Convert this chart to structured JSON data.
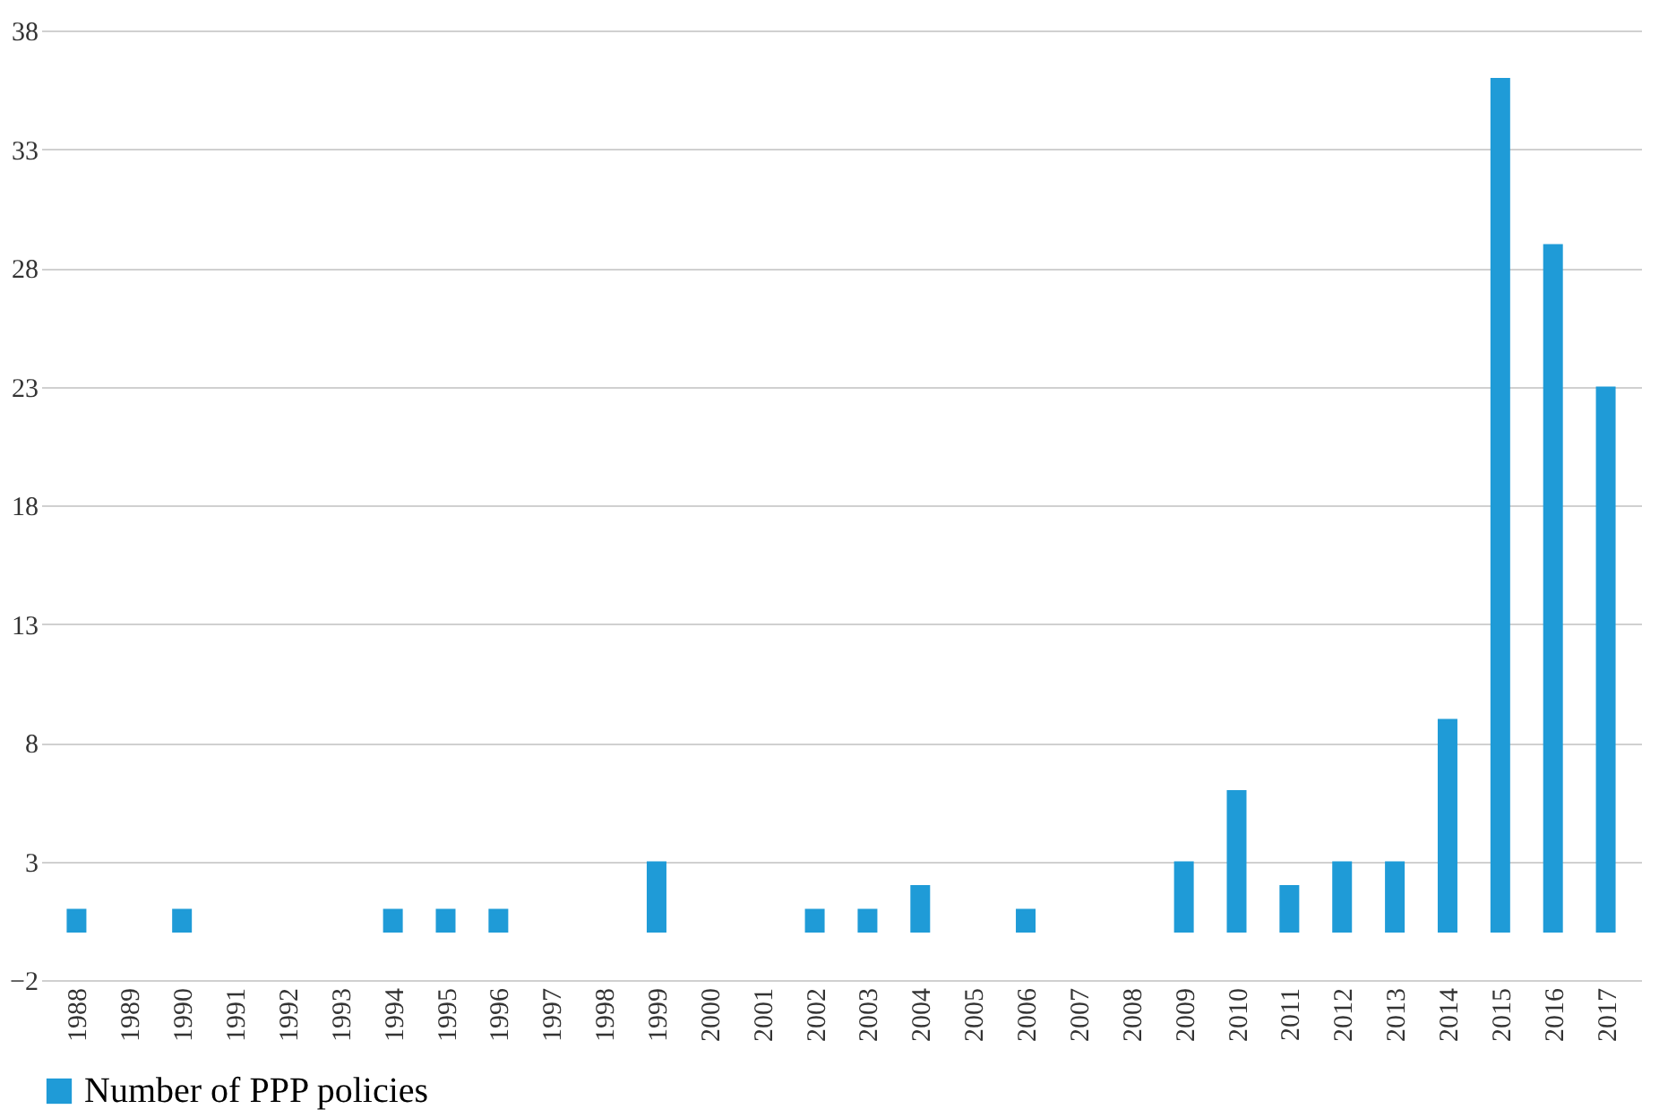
{
  "chart_data": {
    "type": "bar",
    "categories": [
      "1988",
      "1989",
      "1990",
      "1991",
      "1992",
      "1993",
      "1994",
      "1995",
      "1996",
      "1997",
      "1998",
      "1999",
      "2000",
      "2001",
      "2002",
      "2003",
      "2004",
      "2005",
      "2006",
      "2007",
      "2008",
      "2009",
      "2010",
      "2011",
      "2012",
      "2013",
      "2014",
      "2015",
      "2016",
      "2017"
    ],
    "series": [
      {
        "name": "Number of PPP policies",
        "color": "#1f9bd7",
        "values": [
          1,
          0,
          1,
          0,
          0,
          0,
          1,
          1,
          1,
          0,
          0,
          3,
          0,
          0,
          1,
          1,
          2,
          0,
          1,
          0,
          0,
          3,
          6,
          2,
          3,
          3,
          9,
          36,
          29,
          23
        ]
      }
    ],
    "ylim": [
      -2,
      38
    ],
    "yticks": [
      -2,
      3,
      8,
      13,
      18,
      23,
      28,
      33,
      38
    ],
    "grid": "y",
    "legend": "bottom"
  }
}
